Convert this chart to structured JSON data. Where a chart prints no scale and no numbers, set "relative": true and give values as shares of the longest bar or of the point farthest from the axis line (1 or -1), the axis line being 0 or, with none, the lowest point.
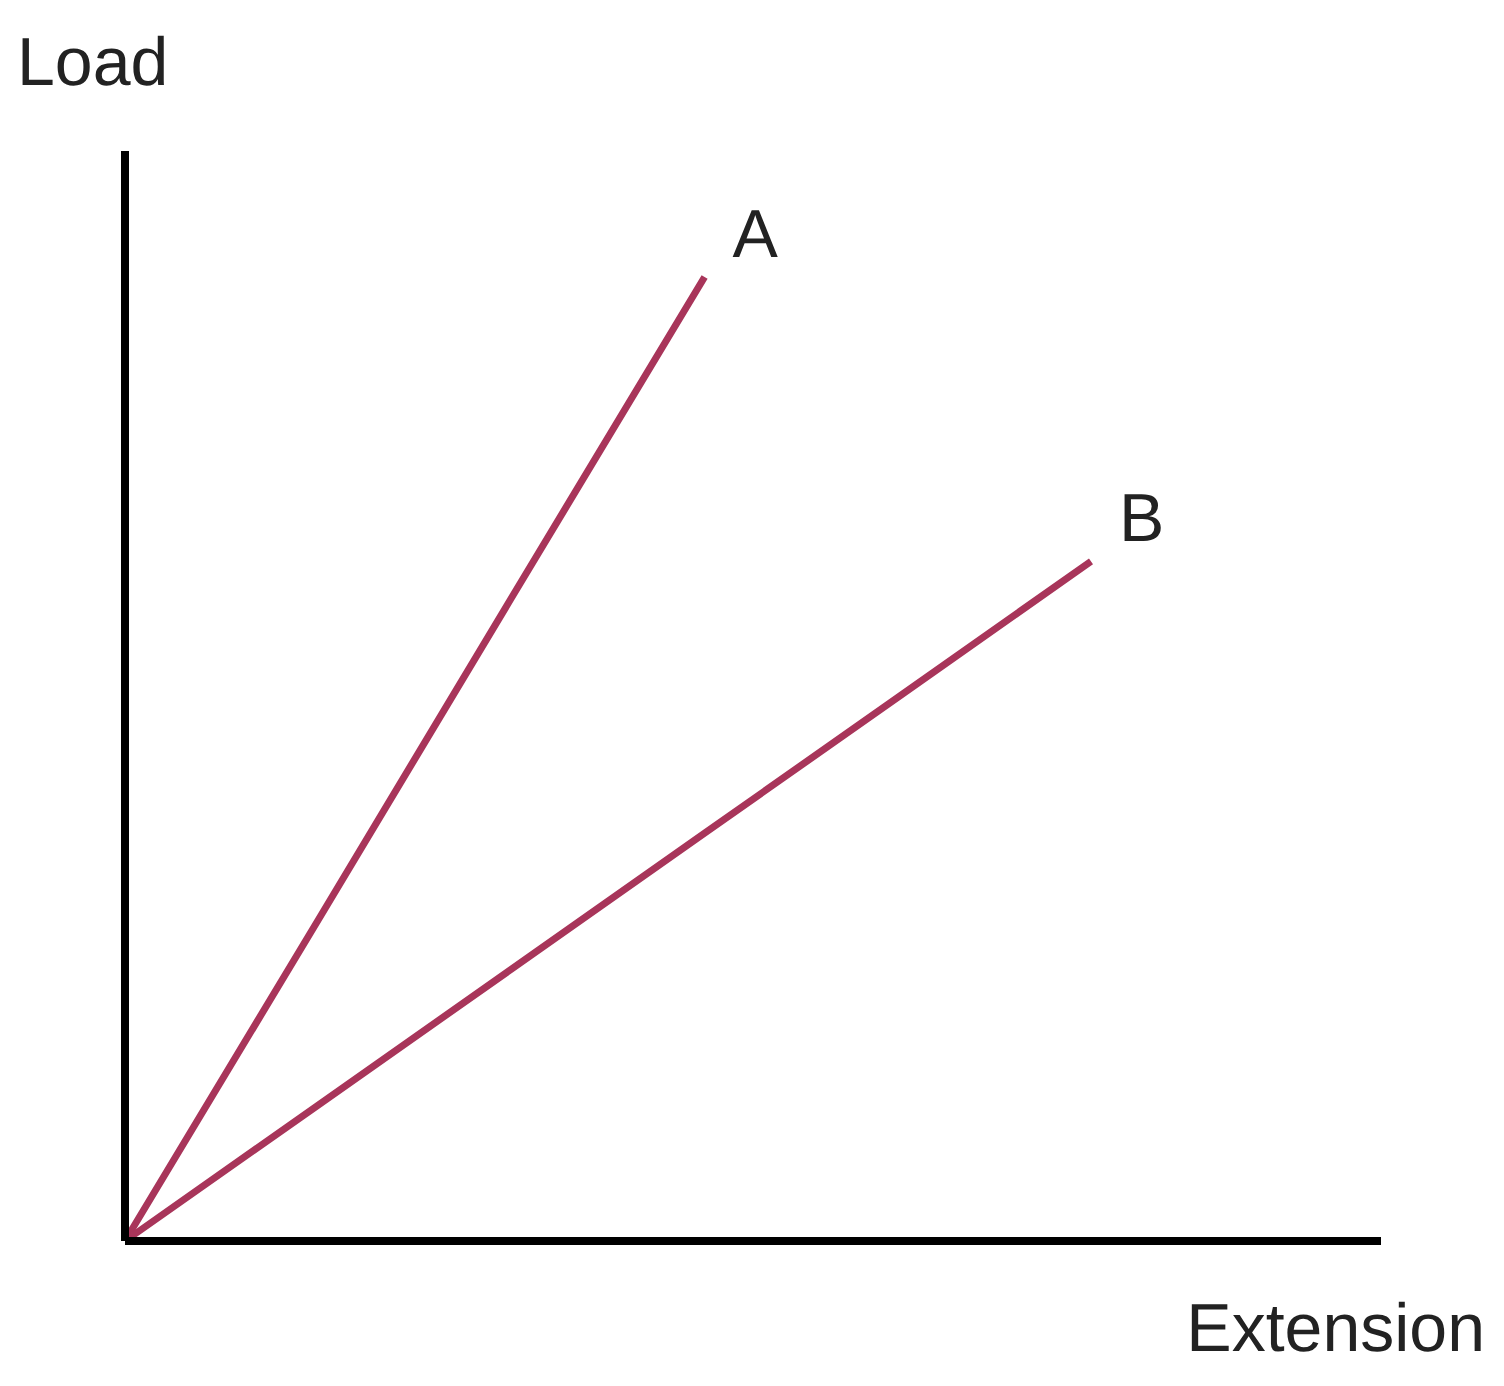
{
  "chart_data": {
    "type": "line",
    "xlabel": "Extension",
    "ylabel": "Load",
    "relative": true,
    "categories": [
      null,
      null,
      null,
      null,
      null,
      null
    ],
    "series": [
      {
        "name": "A",
        "color": "#a8355a",
        "values": [
          0,
          0.333,
          0.667,
          1,
          null,
          null
        ]
      },
      {
        "name": "B",
        "color": "#a8355a",
        "values": [
          0,
          0.141,
          0.282,
          0.423,
          0.564,
          0.705
        ]
      }
    ]
  }
}
